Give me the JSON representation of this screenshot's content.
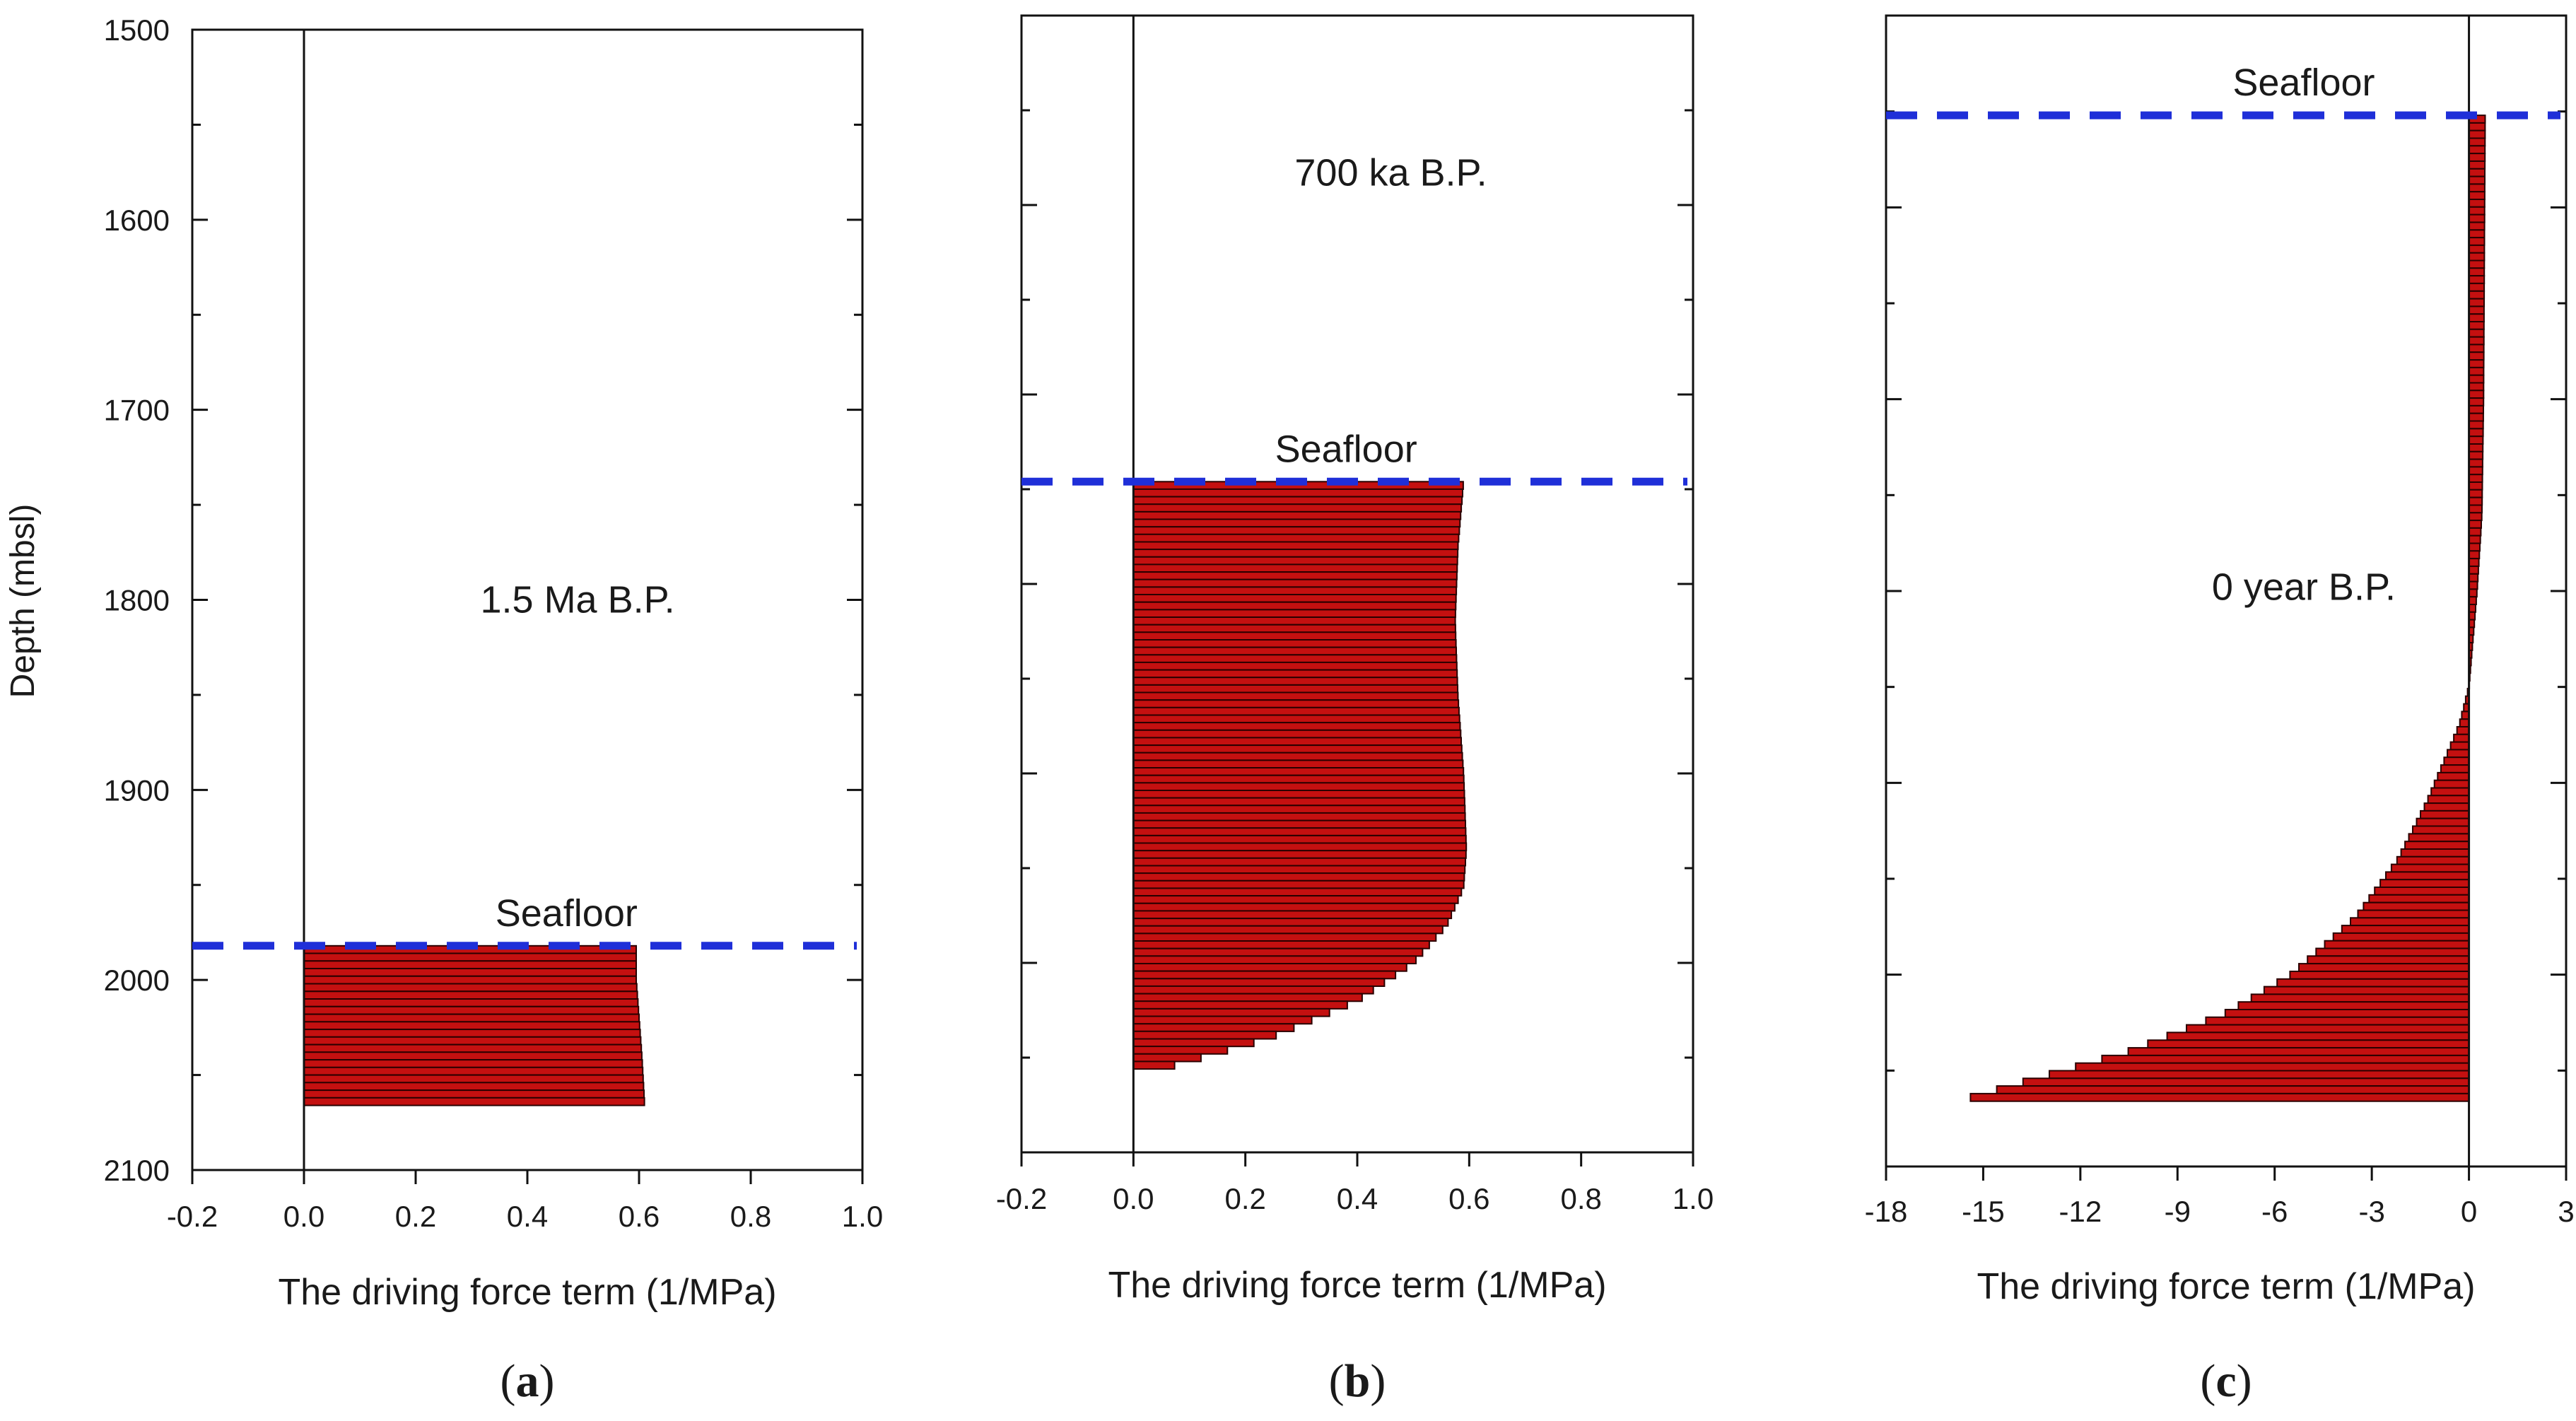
{
  "figure": {
    "y_axis_label": "Depth (mbsl)",
    "y_ticks": [
      "1500",
      "1600",
      "1700",
      "1800",
      "1900",
      "2000",
      "2100"
    ],
    "colors": {
      "bar_fill": "#c41010",
      "bar_edge": "#2a0000",
      "seafloor_line": "#1f2fd8",
      "axis": "#111111"
    }
  },
  "chart_data": [
    {
      "type": "bar",
      "orientation": "horizontal",
      "panel_label": "(a)",
      "label_letter": "a",
      "title": "1.5 Ma B.P.",
      "xlabel": "The driving force term (1/MPa)",
      "ylabel": "Depth (mbsl)",
      "xlim": [
        -0.2,
        1.0
      ],
      "ylim": [
        1500,
        2100
      ],
      "x_ticks": [
        "-0.2",
        "0.0",
        "0.2",
        "0.4",
        "0.6",
        "0.8",
        "1.0"
      ],
      "seafloor": {
        "label": "Seafloor",
        "depth": 1982
      },
      "depth_range": [
        1982,
        2066
      ],
      "profile": [
        [
          1982,
          0.595
        ],
        [
          2000,
          0.595
        ],
        [
          2020,
          0.6
        ],
        [
          2040,
          0.605
        ],
        [
          2066,
          0.61
        ]
      ]
    },
    {
      "type": "bar",
      "orientation": "horizontal",
      "panel_label": "(b)",
      "label_letter": "b",
      "title": "700 ka B.P.",
      "xlabel": "The driving force term (1/MPa)",
      "ylabel": "Depth (mbsl)",
      "xlim": [
        -0.2,
        1.0
      ],
      "ylim": [
        1500,
        2100
      ],
      "x_ticks": [
        "-0.2",
        "0.0",
        "0.2",
        "0.4",
        "0.6",
        "0.8",
        "1.0"
      ],
      "seafloor": {
        "label": "Seafloor",
        "depth": 1746
      },
      "depth_range": [
        1746,
        2056
      ],
      "profile": [
        [
          1746,
          0.59
        ],
        [
          1780,
          0.58
        ],
        [
          1820,
          0.575
        ],
        [
          1860,
          0.58
        ],
        [
          1900,
          0.59
        ],
        [
          1940,
          0.595
        ],
        [
          1960,
          0.59
        ],
        [
          1980,
          0.56
        ],
        [
          2000,
          0.5
        ],
        [
          2020,
          0.4
        ],
        [
          2040,
          0.24
        ],
        [
          2056,
          0.05
        ]
      ]
    },
    {
      "type": "bar",
      "orientation": "horizontal",
      "panel_label": "(c)",
      "label_letter": "c",
      "title": "0 year B.P.",
      "xlabel": "The driving force term (1/MPa)",
      "ylabel": "Depth (mbsl)",
      "xlim": [
        -18,
        3
      ],
      "ylim": [
        1500,
        2100
      ],
      "x_ticks": [
        "-18",
        "-15",
        "-12",
        "-9",
        "-6",
        "-3",
        "0",
        "3"
      ],
      "seafloor": {
        "label": "Seafloor",
        "depth": 1552
      },
      "depth_range": [
        1552,
        2066
      ],
      "profile": [
        [
          1552,
          0.5
        ],
        [
          1700,
          0.45
        ],
        [
          1760,
          0.4
        ],
        [
          1800,
          0.25
        ],
        [
          1830,
          0.1
        ],
        [
          1850,
          0.0
        ],
        [
          1870,
          -0.3
        ],
        [
          1890,
          -0.8
        ],
        [
          1910,
          -1.3
        ],
        [
          1940,
          -2.2
        ],
        [
          1970,
          -3.5
        ],
        [
          2000,
          -5.5
        ],
        [
          2020,
          -7.5
        ],
        [
          2040,
          -10.5
        ],
        [
          2066,
          -15.8
        ]
      ]
    }
  ]
}
